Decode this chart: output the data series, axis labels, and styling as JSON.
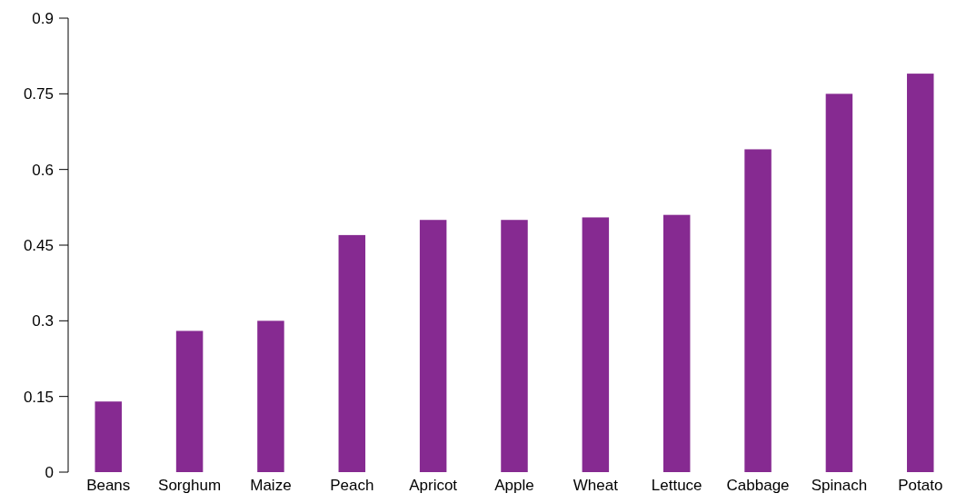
{
  "chart_data": {
    "type": "bar",
    "categories": [
      "Beans",
      "Sorghum",
      "Maize",
      "Peach",
      "Apricot",
      "Apple",
      "Wheat",
      "Lettuce",
      "Cabbage",
      "Spinach",
      "Potato"
    ],
    "values": [
      0.14,
      0.28,
      0.3,
      0.47,
      0.5,
      0.5,
      0.505,
      0.51,
      0.64,
      0.75,
      0.79
    ],
    "color": "#862a91",
    "ylim": [
      0,
      0.9
    ],
    "yticks": [
      0,
      0.15,
      0.3,
      0.45,
      0.6,
      0.75,
      0.9
    ],
    "grid": false
  }
}
